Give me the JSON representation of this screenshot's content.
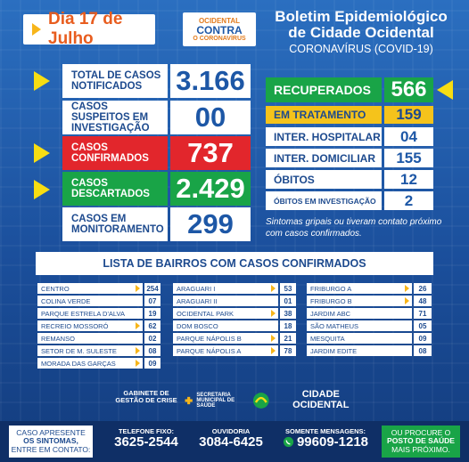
{
  "header": {
    "date": "Dia 17 de Julho",
    "campaign": {
      "line1": "OCIDENTAL",
      "line2": "CONTRA",
      "line3": "O CORONAVÍRUS"
    },
    "title_line1": "Boletim Epidemiológico",
    "title_line2": "de Cidade Ocidental",
    "title_line3": "CORONAVÍRUS (COVID-19)"
  },
  "left_stats": [
    {
      "label": "TOTAL DE CASOS NOTIFICADOS",
      "value": "3.166",
      "style": "white",
      "arrow": true
    },
    {
      "label": "CASOS SUSPEITOS EM INVESTIGAÇÃO",
      "value": "00",
      "style": "white",
      "arrow": false
    },
    {
      "label": "CASOS CONFIRMADOS",
      "value": "737",
      "style": "red",
      "arrow": true
    },
    {
      "label": "CASOS DESCARTADOS",
      "value": "2.429",
      "style": "green",
      "arrow": true
    },
    {
      "label": "CASOS EM MONITORAMENTO",
      "value": "299",
      "style": "white",
      "arrow": false
    }
  ],
  "right_stats": [
    {
      "label": "RECUPERADOS",
      "value": "566",
      "style": "green"
    },
    {
      "label": "EM TRATAMENTO",
      "value": "159",
      "style": "yellow"
    },
    {
      "label": "INTER. HOSPITALAR",
      "value": "04",
      "style": "white"
    },
    {
      "label": "INTER. DOMICILIAR",
      "value": "155",
      "style": "white"
    },
    {
      "label": "ÓBITOS",
      "value": "12",
      "style": "white"
    },
    {
      "label": "ÓBITOS EM INVESTIGAÇÃO",
      "value": "2",
      "style": "white"
    }
  ],
  "note": "Sintomas gripais ou tiveram contato próximo com casos confirmados.",
  "list_title": "LISTA DE BAIRROS COM CASOS CONFIRMADOS",
  "neighborhoods": {
    "col1": [
      {
        "name": "CENTRO",
        "value": "254",
        "marker": true
      },
      {
        "name": "COLINA VERDE",
        "value": "07",
        "marker": false
      },
      {
        "name": "PARQUE ESTRELA D'ALVA",
        "value": "19",
        "marker": false
      },
      {
        "name": "RECREIO MOSSORÓ",
        "value": "62",
        "marker": true
      },
      {
        "name": "REMANSO",
        "value": "02",
        "marker": false
      },
      {
        "name": "SETOR DE M. SULESTE",
        "value": "08",
        "marker": true
      },
      {
        "name": "MORADA DAS GARÇAS",
        "value": "09",
        "marker": true
      }
    ],
    "col2": [
      {
        "name": "ARAGUARI I",
        "value": "53",
        "marker": true
      },
      {
        "name": "ARAGUARI II",
        "value": "01",
        "marker": false
      },
      {
        "name": "OCIDENTAL PARK",
        "value": "38",
        "marker": true
      },
      {
        "name": "DOM BOSCO",
        "value": "18",
        "marker": false
      },
      {
        "name": "PARQUE NÁPOLIS B",
        "value": "21",
        "marker": true
      },
      {
        "name": "PARQUE NÁPOLIS A",
        "value": "78",
        "marker": true
      }
    ],
    "col3": [
      {
        "name": "FRIBURGO A",
        "value": "26",
        "marker": true
      },
      {
        "name": "FRIBURGO B",
        "value": "48",
        "marker": true
      },
      {
        "name": "JARDIM ABC",
        "value": "71",
        "marker": false
      },
      {
        "name": "SÃO MATHEUS",
        "value": "05",
        "marker": false
      },
      {
        "name": "MESQUITA",
        "value": "09",
        "marker": false
      },
      {
        "name": "JARDIM EDITE",
        "value": "08",
        "marker": false
      }
    ]
  },
  "orgs": {
    "gabinete": "GABINETE DE GESTÃO DE CRISE",
    "secretaria": "SECRETARIA MUNICIPAL DE SAÚDE",
    "prefeitura": "CIDADE OCIDENTAL"
  },
  "footer": {
    "left_box": {
      "line1": "CASO APRESENTE",
      "line2": "OS SINTOMAS,",
      "line3": "ENTRE EM CONTATO:"
    },
    "phone": {
      "label": "TELEFONE FIXO:",
      "number": "3625-2544"
    },
    "ouvidoria": {
      "label": "OUVIDORIA",
      "number": "3084-6425"
    },
    "sms": {
      "label": "SOMENTE MENSAGENS:",
      "number": "99609-1218"
    },
    "right_box": {
      "line1": "OU PROCURE O",
      "line2": "POSTO DE SAÚDE",
      "line3": "MAIS PRÓXIMO."
    }
  }
}
